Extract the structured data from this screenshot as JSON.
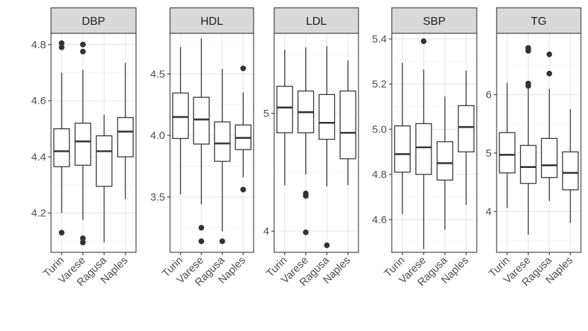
{
  "chart_data": {
    "type": "boxplot",
    "layout": "facets",
    "categories": [
      "Turin",
      "Varese",
      "Ragusa",
      "Naples"
    ],
    "facets": [
      {
        "title": "DBP",
        "ylim": [
          4.06,
          4.84
        ],
        "yticks": [
          4.2,
          4.4,
          4.6,
          4.8
        ],
        "tick_labels": [
          "4.2",
          "4.4",
          "4.6",
          "4.8"
        ],
        "boxes": [
          {
            "whisker_low": 4.2,
            "q1": 4.365,
            "median": 4.42,
            "q3": 4.5,
            "whisker_high": 4.7,
            "outliers": [
              4.805,
              4.79,
              4.13
            ]
          },
          {
            "whisker_low": 4.175,
            "q1": 4.37,
            "median": 4.455,
            "q3": 4.52,
            "whisker_high": 4.71,
            "outliers": [
              4.8,
              4.775,
              4.11,
              4.095
            ]
          },
          {
            "whisker_low": 4.095,
            "q1": 4.295,
            "median": 4.42,
            "q3": 4.475,
            "whisker_high": 4.55,
            "outliers": []
          },
          {
            "whisker_low": 4.25,
            "q1": 4.4,
            "median": 4.49,
            "q3": 4.54,
            "whisker_high": 4.735,
            "outliers": []
          }
        ]
      },
      {
        "title": "HDL",
        "ylim": [
          3.05,
          4.83
        ],
        "yticks": [
          3.5,
          4.0,
          4.5
        ],
        "tick_labels": [
          "3.5",
          "4.0",
          "4.5"
        ],
        "boxes": [
          {
            "whisker_low": 3.52,
            "q1": 3.975,
            "median": 4.15,
            "q3": 4.345,
            "whisker_high": 4.72,
            "outliers": []
          },
          {
            "whisker_low": 3.44,
            "q1": 3.93,
            "median": 4.13,
            "q3": 4.31,
            "whisker_high": 4.79,
            "outliers": [
              3.25,
              3.14
            ]
          },
          {
            "whisker_low": 3.22,
            "q1": 3.79,
            "median": 3.935,
            "q3": 4.11,
            "whisker_high": 4.54,
            "outliers": [
              3.14
            ]
          },
          {
            "whisker_low": 3.66,
            "q1": 3.885,
            "median": 3.98,
            "q3": 4.085,
            "whisker_high": 4.35,
            "outliers": [
              4.545,
              3.56
            ]
          }
        ]
      },
      {
        "title": "LDL",
        "ylim": [
          3.82,
          5.68
        ],
        "yticks": [
          4,
          5
        ],
        "tick_labels": [
          "4",
          "5"
        ],
        "boxes": [
          {
            "whisker_low": 4.39,
            "q1": 4.835,
            "median": 5.05,
            "q3": 5.23,
            "whisker_high": 5.54,
            "outliers": []
          },
          {
            "whisker_low": 4.48,
            "q1": 4.835,
            "median": 5.01,
            "q3": 5.19,
            "whisker_high": 5.56,
            "outliers": [
              4.32,
              4.3,
              3.99
            ]
          },
          {
            "whisker_low": 4.38,
            "q1": 4.78,
            "median": 4.92,
            "q3": 5.16,
            "whisker_high": 5.57,
            "outliers": [
              3.88
            ]
          },
          {
            "whisker_low": 4.39,
            "q1": 4.615,
            "median": 4.835,
            "q3": 5.19,
            "whisker_high": 5.45,
            "outliers": []
          }
        ]
      },
      {
        "title": "SBP",
        "ylim": [
          4.455,
          5.425
        ],
        "yticks": [
          4.6,
          4.8,
          5.0,
          5.2,
          5.4
        ],
        "tick_labels": [
          "4.6",
          "4.8",
          "5.0",
          "5.2",
          "5.4"
        ],
        "boxes": [
          {
            "whisker_low": 4.625,
            "q1": 4.81,
            "median": 4.89,
            "q3": 5.015,
            "whisker_high": 5.295,
            "outliers": []
          },
          {
            "whisker_low": 4.47,
            "q1": 4.8,
            "median": 4.92,
            "q3": 5.025,
            "whisker_high": 5.265,
            "outliers": [
              5.39
            ]
          },
          {
            "whisker_low": 4.555,
            "q1": 4.775,
            "median": 4.85,
            "q3": 4.945,
            "whisker_high": 5.145,
            "outliers": []
          },
          {
            "whisker_low": 4.665,
            "q1": 4.9,
            "median": 5.01,
            "q3": 5.105,
            "whisker_high": 5.26,
            "outliers": []
          }
        ]
      },
      {
        "title": "TG",
        "ylim": [
          3.3,
          7.05
        ],
        "yticks": [
          4,
          5,
          6
        ],
        "tick_labels": [
          "4",
          "5",
          "6"
        ],
        "boxes": [
          {
            "whisker_low": 4.06,
            "q1": 4.66,
            "median": 4.97,
            "q3": 5.35,
            "whisker_high": 6.2,
            "outliers": []
          },
          {
            "whisker_low": 3.6,
            "q1": 4.48,
            "median": 4.76,
            "q3": 5.13,
            "whisker_high": 6.1,
            "outliers": [
              6.8,
              6.78,
              6.75,
              6.19,
              6.15
            ]
          },
          {
            "whisker_low": 4.18,
            "q1": 4.58,
            "median": 4.79,
            "q3": 5.25,
            "whisker_high": 6.1,
            "outliers": [
              6.69,
              6.36
            ]
          },
          {
            "whisker_low": 3.8,
            "q1": 4.37,
            "median": 4.66,
            "q3": 5.02,
            "whisker_high": 5.75,
            "outliers": []
          }
        ]
      }
    ]
  }
}
